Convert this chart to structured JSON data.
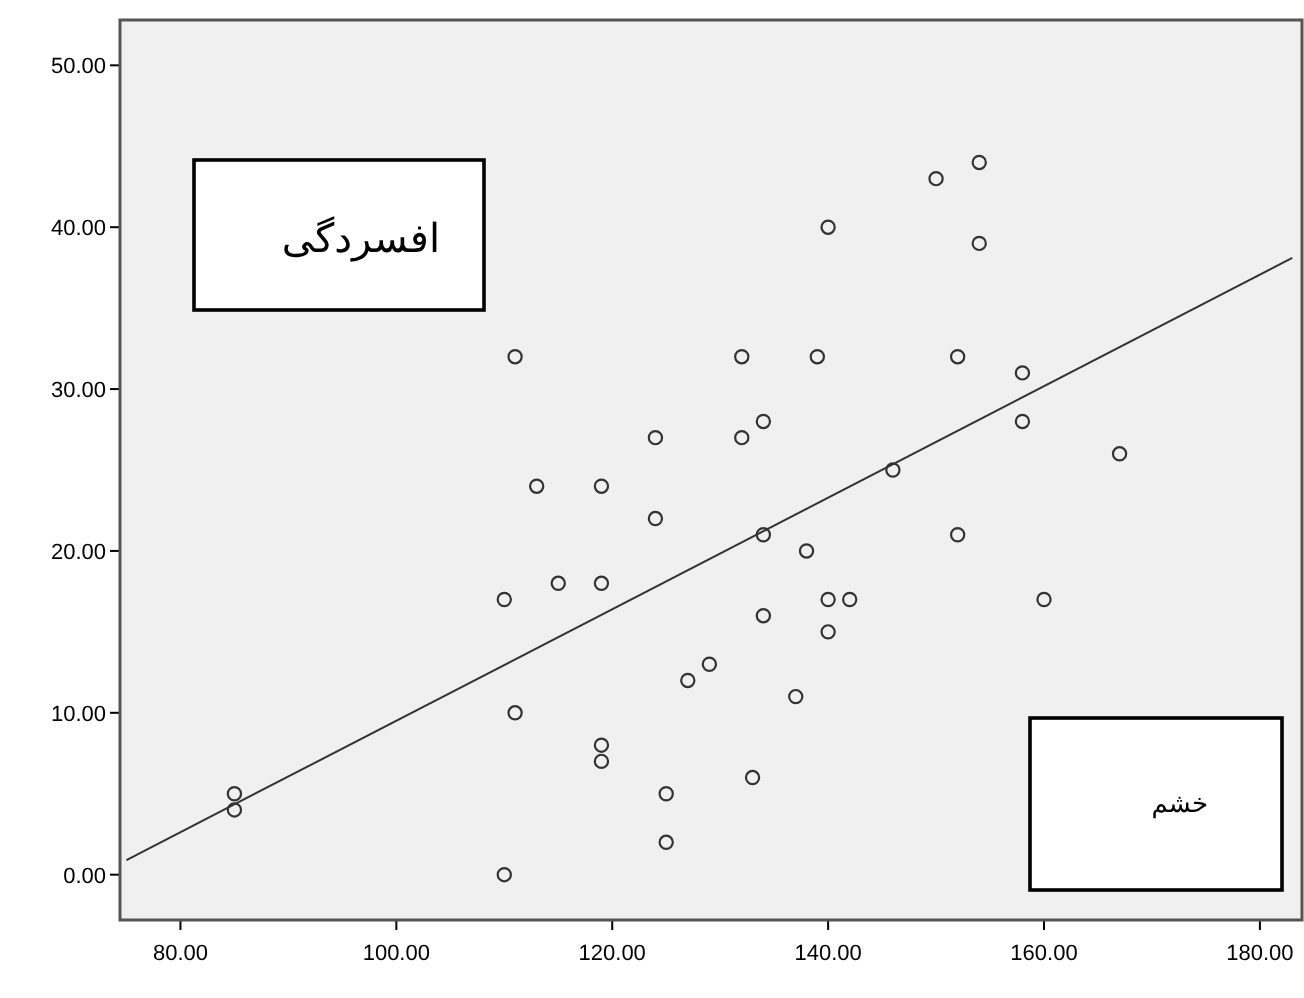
{
  "chart_data": {
    "type": "scatter",
    "annotations": [
      "افسردگی",
      "خشم"
    ],
    "xlim": [
      74.4,
      183.9
    ],
    "ylim": [
      -2.8,
      52.8
    ],
    "xticks": [
      {
        "value": 80,
        "label": "80.00"
      },
      {
        "value": 100,
        "label": "100.00"
      },
      {
        "value": 120,
        "label": "120.00"
      },
      {
        "value": 140,
        "label": "140.00"
      },
      {
        "value": 160,
        "label": "160.00"
      },
      {
        "value": 180,
        "label": "180.00"
      }
    ],
    "yticks": [
      {
        "value": 0,
        "label": "0.00"
      },
      {
        "value": 10,
        "label": "10.00"
      },
      {
        "value": 20,
        "label": "20.00"
      },
      {
        "value": 30,
        "label": "30.00"
      },
      {
        "value": 40,
        "label": "40.00"
      },
      {
        "value": 50,
        "label": "50.00"
      }
    ],
    "grid": false,
    "series": [
      {
        "color": "#333333",
        "marker": "circle",
        "x": [
          111,
          113,
          119,
          124,
          124,
          150,
          154,
          140,
          154,
          132,
          139,
          152,
          158,
          132,
          134,
          158,
          167,
          146,
          115,
          119,
          110,
          111,
          119,
          119,
          85,
          85,
          110,
          134,
          138,
          152,
          140,
          142,
          160,
          134,
          140,
          129,
          127,
          137,
          133,
          125,
          125
        ],
        "values": [
          32,
          24,
          24,
          27,
          22,
          43,
          44,
          40,
          39,
          32,
          32,
          32,
          31,
          27,
          28,
          28,
          26,
          25,
          18,
          18,
          17,
          10,
          8,
          7,
          5,
          4,
          0,
          21,
          20,
          21,
          17,
          17,
          17,
          16,
          15,
          13,
          12,
          11,
          6,
          5,
          2
        ]
      },
      {
        "type": "line",
        "color": "#333333",
        "x": [
          75,
          183
        ],
        "values": [
          0.9,
          38.1
        ]
      }
    ]
  }
}
